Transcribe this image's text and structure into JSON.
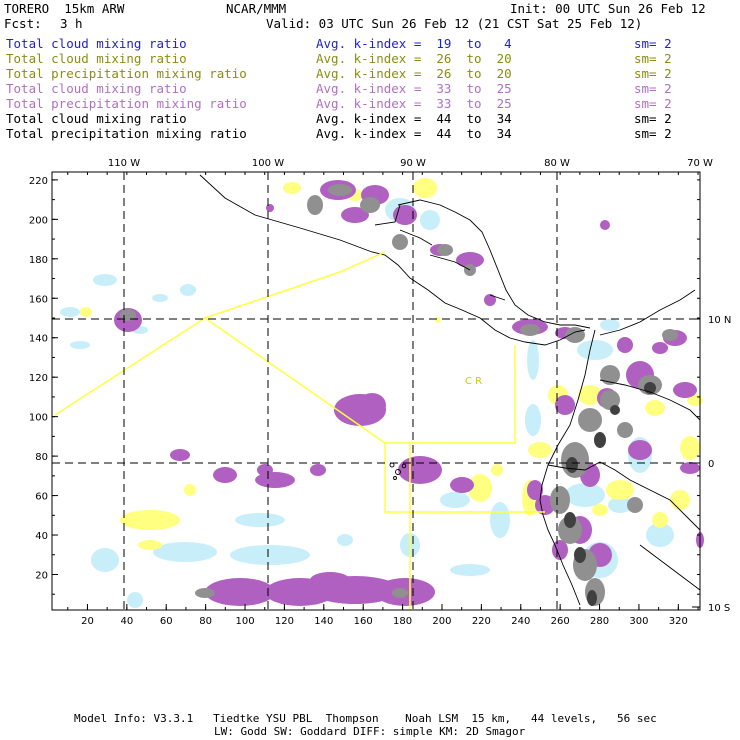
{
  "header": {
    "model": "TORERO  15km ARW",
    "org": "NCAR/MMM",
    "init": "Init: 00 UTC Sun 26 Feb 12",
    "fcst_label": "Fcst:",
    "fcst_value": "3 h",
    "valid": "Valid: 03 UTC Sun 26 Feb 12 (21 CST Sat 25 Feb 12)"
  },
  "legend": [
    {
      "field": "Total cloud mixing ratio",
      "kindex": "Avg. k-index =  19  to   4",
      "sm": "sm= 2",
      "color": "#2222cc"
    },
    {
      "field": "Total cloud mixing ratio",
      "kindex": "Avg. k-index =  26  to  20",
      "sm": "sm= 2",
      "color": "#8c8c14"
    },
    {
      "field": "Total precipitation mixing ratio",
      "kindex": "Avg. k-index =  26  to  20",
      "sm": "sm= 2",
      "color": "#8c8c14"
    },
    {
      "field": "Total cloud mixing ratio",
      "kindex": "Avg. k-index =  33  to  25",
      "sm": "sm= 2",
      "color": "#b070c0"
    },
    {
      "field": "Total precipitation mixing ratio",
      "kindex": "Avg. k-index =  33  to  25",
      "sm": "sm= 2",
      "color": "#b070c0"
    },
    {
      "field": "Total cloud mixing ratio",
      "kindex": "Avg. k-index =  44  to  34",
      "sm": "sm= 2",
      "color": "#000000"
    },
    {
      "field": "Total precipitation mixing ratio",
      "kindex": "Avg. k-index =  44  to  34",
      "sm": "sm= 2",
      "color": "#000000"
    }
  ],
  "axes": {
    "top_lon": [
      "110 W",
      "100 W",
      "90 W",
      "80 W",
      "70 W"
    ],
    "right_lat": [
      "10 N",
      "0",
      "10 S"
    ],
    "left_ticks": [
      "220",
      "200",
      "180",
      "160",
      "140",
      "120",
      "100",
      "80",
      "60",
      "40",
      "20"
    ],
    "bottom_ticks": [
      "20",
      "40",
      "60",
      "80",
      "100",
      "120",
      "140",
      "160",
      "180",
      "200",
      "220",
      "240",
      "260",
      "280",
      "300",
      "320"
    ]
  },
  "map_label": "C R",
  "colors": {
    "yellow": "#ffff80",
    "lightblue": "#c8eefa",
    "purple": "#b060c0",
    "gray": "#909090",
    "darkgray": "#404040",
    "boundary": "#ffff40"
  },
  "footer": {
    "line1": "Model Info: V3.3.1   Tiedtke YSU PBL  Thompson    Noah LSM  15 km,   44 levels,   56 sec",
    "line2": "LW: Godd SW: Goddard DIFF: simple KM: 2D Smagor"
  }
}
